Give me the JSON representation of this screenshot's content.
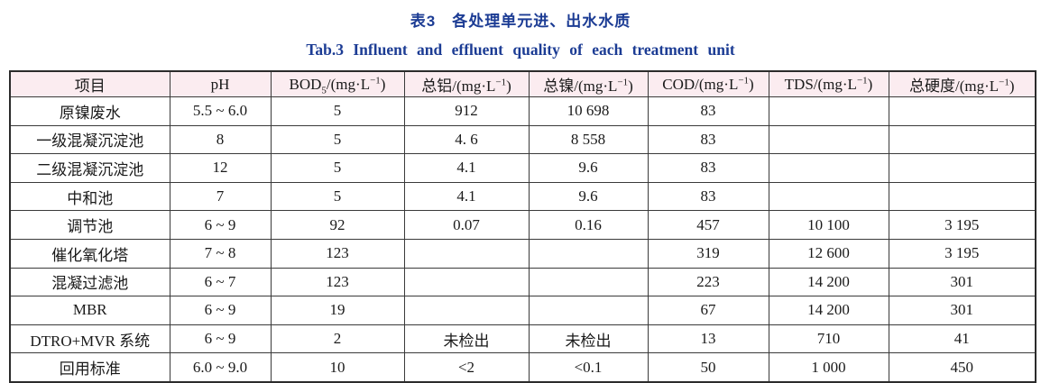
{
  "caption": {
    "title_cn": "表3　各处理单元进、出水水质",
    "title_en": "Tab.3  Influent and effluent quality of each treatment unit"
  },
  "table": {
    "columns": [
      "项目",
      "pH",
      "BOD₅/(mg·L⁻¹)",
      "总铝/(mg·L⁻¹)",
      "总镍/(mg·L⁻¹)",
      "COD/(mg·L⁻¹)",
      "TDS/(mg·L⁻¹)",
      "总硬度/(mg·L⁻¹)"
    ],
    "rows": [
      [
        "原镍废水",
        "5.5 ~ 6.0",
        "5",
        "912",
        "10 698",
        "83",
        "",
        ""
      ],
      [
        "一级混凝沉淀池",
        "8",
        "5",
        "4. 6",
        "8 558",
        "83",
        "",
        ""
      ],
      [
        "二级混凝沉淀池",
        "12",
        "5",
        "4.1",
        "9.6",
        "83",
        "",
        ""
      ],
      [
        "中和池",
        "7",
        "5",
        "4.1",
        "9.6",
        "83",
        "",
        ""
      ],
      [
        "调节池",
        "6 ~ 9",
        "92",
        "0.07",
        "0.16",
        "457",
        "10 100",
        "3 195"
      ],
      [
        "催化氧化塔",
        "7 ~ 8",
        "123",
        "",
        "",
        "319",
        "12 600",
        "3 195"
      ],
      [
        "混凝过滤池",
        "6 ~ 7",
        "123",
        "",
        "",
        "223",
        "14 200",
        "301"
      ],
      [
        "MBR",
        "6 ~ 9",
        "19",
        "",
        "",
        "67",
        "14 200",
        "301"
      ],
      [
        "DTRO+MVR 系统",
        "6 ~ 9",
        "2",
        "未检出",
        "未检出",
        "13",
        "710",
        "41"
      ],
      [
        "回用标准",
        "6.0 ~ 9.0",
        "10",
        "<2",
        "<0.1",
        "50",
        "1 000",
        "450"
      ]
    ],
    "colors": {
      "caption_blue": "#1c3c94",
      "header_bg": "#fbecf0",
      "border": "#3a3a3a",
      "text": "#1a1a1a"
    }
  }
}
